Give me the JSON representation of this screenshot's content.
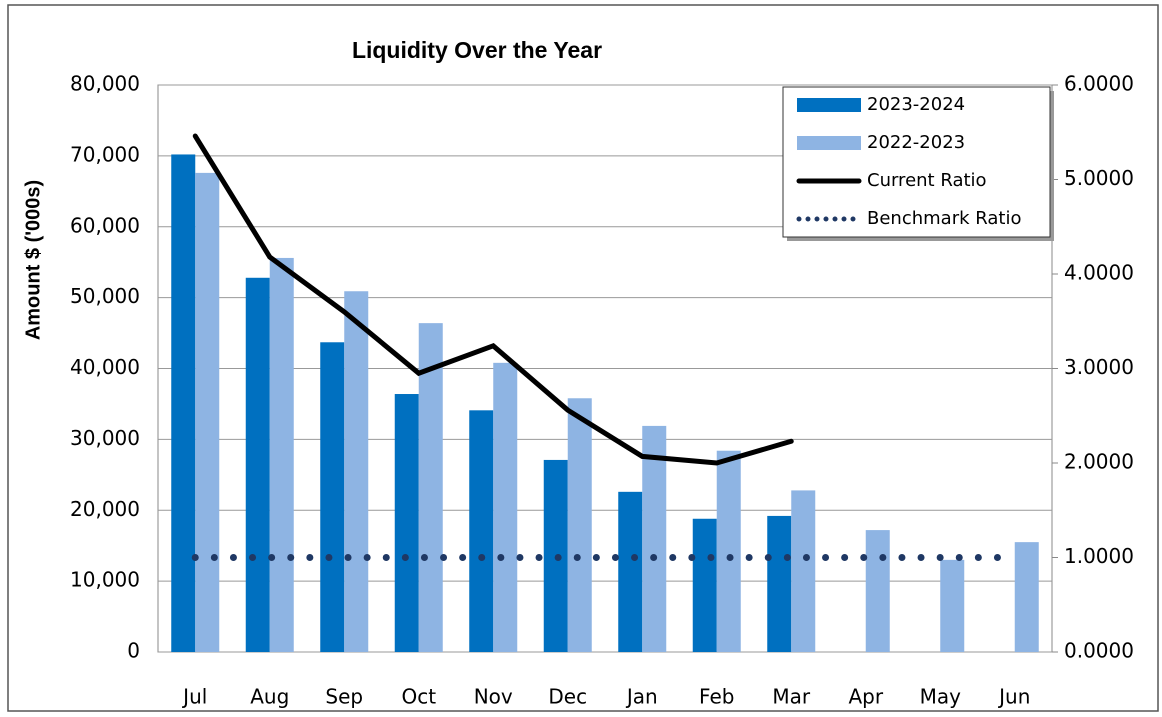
{
  "chart_data": {
    "type": "bar",
    "title": "Liquidity Over the Year",
    "ylabel": "Amount $ ('000s)",
    "categories": [
      "Jul",
      "Aug",
      "Sep",
      "Oct",
      "Nov",
      "Dec",
      "Jan",
      "Feb",
      "Mar",
      "Apr",
      "May",
      "Jun"
    ],
    "series": [
      {
        "name": "2023-2024",
        "type": "bar",
        "color": "#0070c0",
        "values": [
          70200,
          52800,
          43700,
          36400,
          34100,
          27100,
          22600,
          18800,
          19200,
          null,
          null,
          null
        ]
      },
      {
        "name": "2022-2023",
        "type": "bar",
        "color": "#8eb4e3",
        "values": [
          67600,
          55600,
          50900,
          46400,
          40800,
          35800,
          31900,
          28400,
          22800,
          17200,
          13000,
          15500
        ]
      },
      {
        "name": "Current Ratio",
        "type": "line",
        "axis": "y2",
        "color": "#000000",
        "values": [
          5.46,
          4.18,
          3.6,
          2.95,
          3.24,
          2.56,
          2.07,
          2.0,
          2.23,
          null,
          null,
          null
        ]
      },
      {
        "name": "Benchmark Ratio",
        "type": "line",
        "line_style": "dotted",
        "axis": "y2",
        "color": "#1f3864",
        "values": [
          1,
          1,
          1,
          1,
          1,
          1,
          1,
          1,
          1,
          1,
          1,
          1
        ]
      }
    ],
    "ylim": [
      0,
      80000
    ],
    "yticks": [
      0,
      {
        "value": 10000,
        "label": "10,000"
      },
      {
        "value": 20000,
        "label": "20,000"
      },
      {
        "value": 30000,
        "label": "30,000"
      },
      {
        "value": 40000,
        "label": "40,000"
      },
      {
        "value": 50000,
        "label": "50,000"
      },
      {
        "value": 60000,
        "label": "60,000"
      },
      {
        "value": 70000,
        "label": "70,000"
      },
      {
        "value": 80000,
        "label": "80,000"
      }
    ],
    "y2lim": [
      0,
      6
    ],
    "y2ticks": [
      {
        "value": 0,
        "label": "0.0000"
      },
      {
        "value": 1,
        "label": "1.0000"
      },
      {
        "value": 2,
        "label": "2.0000"
      },
      {
        "value": 3,
        "label": "3.0000"
      },
      {
        "value": 4,
        "label": "4.0000"
      },
      {
        "value": 5,
        "label": "5.0000"
      },
      {
        "value": 6,
        "label": "6.0000"
      }
    ],
    "grid": true,
    "legend": "upper right"
  }
}
